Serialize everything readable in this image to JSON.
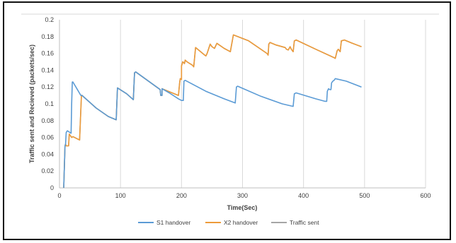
{
  "chart_data": {
    "type": "line",
    "title": "",
    "xlabel": "Time(Sec)",
    "ylabel": "Traffic sent and Recieved (packets/sec)",
    "xlim": [
      0,
      600
    ],
    "ylim": [
      0,
      0.2
    ],
    "x_ticks": [
      "0",
      "100",
      "200",
      "300",
      "400",
      "500",
      "600"
    ],
    "y_ticks": [
      "0",
      "0.02",
      "0.04",
      "0.06",
      "0.08",
      "0.1",
      "0.12",
      "0.14",
      "0.16",
      "0.18",
      "0.2"
    ],
    "grid": "vertical",
    "legend_position": "bottom",
    "colors": {
      "S1 handover": "#5b9bd5",
      "X2 handover": "#ed9b3a",
      "Traffic sent": "#a5a5a5"
    },
    "series": [
      {
        "name": "Traffic sent",
        "points": [
          [
            7,
            0
          ],
          [
            9,
            0.05
          ],
          [
            10,
            0.052
          ],
          [
            11,
            0.05
          ],
          [
            13,
            0.05
          ],
          [
            15,
            0.05
          ],
          [
            16,
            0.064
          ],
          [
            18,
            0.062
          ],
          [
            20,
            0.06
          ],
          [
            22,
            0.061
          ],
          [
            33,
            0.057
          ],
          [
            36,
            0.11
          ],
          [
            37,
            0.11
          ],
          [
            60,
            0.095
          ],
          [
            80,
            0.085
          ],
          [
            93,
            0.081
          ],
          [
            95,
            0.119
          ],
          [
            110,
            0.112
          ],
          [
            121,
            0.105
          ],
          [
            123,
            0.137
          ],
          [
            125,
            0.138
          ],
          [
            165,
            0.117
          ],
          [
            166,
            0.11
          ],
          [
            168,
            0.11
          ],
          [
            168,
            0.118
          ],
          [
            195,
            0.11
          ],
          [
            197,
            0.125
          ],
          [
            198,
            0.13
          ],
          [
            200,
            0.129
          ],
          [
            200,
            0.145
          ],
          [
            202,
            0.15
          ],
          [
            205,
            0.148
          ],
          [
            206,
            0.152
          ],
          [
            209,
            0.15
          ],
          [
            218,
            0.146
          ],
          [
            220,
            0.144
          ],
          [
            223,
            0.167
          ],
          [
            238,
            0.158
          ],
          [
            240,
            0.157
          ],
          [
            242,
            0.16
          ],
          [
            247,
            0.171
          ],
          [
            250,
            0.168
          ],
          [
            254,
            0.166
          ],
          [
            258,
            0.172
          ],
          [
            270,
            0.166
          ],
          [
            280,
            0.162
          ],
          [
            285,
            0.182
          ],
          [
            310,
            0.175
          ],
          [
            340,
            0.16
          ],
          [
            342,
            0.158
          ],
          [
            343,
            0.171
          ],
          [
            345,
            0.173
          ],
          [
            355,
            0.17
          ],
          [
            370,
            0.167
          ],
          [
            372,
            0.165
          ],
          [
            375,
            0.164
          ],
          [
            378,
            0.168
          ],
          [
            380,
            0.165
          ],
          [
            383,
            0.162
          ],
          [
            385,
            0.175
          ],
          [
            388,
            0.176
          ],
          [
            420,
            0.165
          ],
          [
            450,
            0.155
          ],
          [
            452,
            0.154
          ],
          [
            455,
            0.163
          ],
          [
            457,
            0.165
          ],
          [
            460,
            0.162
          ],
          [
            462,
            0.175
          ],
          [
            467,
            0.176
          ],
          [
            480,
            0.172
          ],
          [
            495,
            0.168
          ]
        ]
      },
      {
        "name": "X2 handover",
        "points": [
          [
            7,
            0
          ],
          [
            9,
            0.05
          ],
          [
            10,
            0.052
          ],
          [
            11,
            0.05
          ],
          [
            13,
            0.05
          ],
          [
            15,
            0.05
          ],
          [
            16,
            0.064
          ],
          [
            18,
            0.062
          ],
          [
            20,
            0.06
          ],
          [
            22,
            0.061
          ],
          [
            33,
            0.057
          ],
          [
            36,
            0.11
          ],
          [
            37,
            0.11
          ],
          [
            60,
            0.095
          ],
          [
            80,
            0.085
          ],
          [
            93,
            0.081
          ],
          [
            95,
            0.119
          ],
          [
            110,
            0.112
          ],
          [
            121,
            0.105
          ],
          [
            123,
            0.137
          ],
          [
            125,
            0.138
          ],
          [
            165,
            0.117
          ],
          [
            166,
            0.11
          ],
          [
            168,
            0.11
          ],
          [
            168,
            0.118
          ],
          [
            195,
            0.11
          ],
          [
            197,
            0.125
          ],
          [
            198,
            0.13
          ],
          [
            200,
            0.129
          ],
          [
            200,
            0.145
          ],
          [
            202,
            0.15
          ],
          [
            205,
            0.148
          ],
          [
            206,
            0.152
          ],
          [
            209,
            0.15
          ],
          [
            218,
            0.146
          ],
          [
            220,
            0.144
          ],
          [
            223,
            0.167
          ],
          [
            238,
            0.158
          ],
          [
            240,
            0.157
          ],
          [
            242,
            0.16
          ],
          [
            247,
            0.171
          ],
          [
            250,
            0.168
          ],
          [
            254,
            0.166
          ],
          [
            258,
            0.172
          ],
          [
            270,
            0.166
          ],
          [
            280,
            0.162
          ],
          [
            285,
            0.182
          ],
          [
            310,
            0.175
          ],
          [
            340,
            0.16
          ],
          [
            342,
            0.158
          ],
          [
            343,
            0.171
          ],
          [
            345,
            0.173
          ],
          [
            355,
            0.17
          ],
          [
            370,
            0.167
          ],
          [
            372,
            0.165
          ],
          [
            375,
            0.164
          ],
          [
            378,
            0.168
          ],
          [
            380,
            0.165
          ],
          [
            383,
            0.162
          ],
          [
            385,
            0.175
          ],
          [
            388,
            0.176
          ],
          [
            420,
            0.165
          ],
          [
            450,
            0.155
          ],
          [
            452,
            0.154
          ],
          [
            455,
            0.163
          ],
          [
            457,
            0.165
          ],
          [
            460,
            0.162
          ],
          [
            462,
            0.175
          ],
          [
            467,
            0.176
          ],
          [
            480,
            0.172
          ],
          [
            495,
            0.168
          ]
        ]
      },
      {
        "name": "S1 handover",
        "points": [
          [
            7,
            0
          ],
          [
            9,
            0.05
          ],
          [
            10,
            0.052
          ],
          [
            11,
            0.066
          ],
          [
            13,
            0.068
          ],
          [
            15,
            0.067
          ],
          [
            17,
            0.066
          ],
          [
            19,
            0.065
          ],
          [
            20,
            0.1
          ],
          [
            21,
            0.126
          ],
          [
            22,
            0.126
          ],
          [
            35,
            0.11
          ],
          [
            37,
            0.11
          ],
          [
            60,
            0.095
          ],
          [
            80,
            0.085
          ],
          [
            93,
            0.081
          ],
          [
            95,
            0.119
          ],
          [
            110,
            0.112
          ],
          [
            121,
            0.105
          ],
          [
            123,
            0.137
          ],
          [
            125,
            0.138
          ],
          [
            165,
            0.117
          ],
          [
            166,
            0.11
          ],
          [
            168,
            0.11
          ],
          [
            168,
            0.118
          ],
          [
            180,
            0.113
          ],
          [
            195,
            0.106
          ],
          [
            200,
            0.104
          ],
          [
            203,
            0.104
          ],
          [
            204,
            0.127
          ],
          [
            206,
            0.128
          ],
          [
            240,
            0.115
          ],
          [
            270,
            0.106
          ],
          [
            288,
            0.101
          ],
          [
            290,
            0.12
          ],
          [
            292,
            0.121
          ],
          [
            330,
            0.109
          ],
          [
            365,
            0.1
          ],
          [
            383,
            0.097
          ],
          [
            385,
            0.112
          ],
          [
            388,
            0.113
          ],
          [
            420,
            0.106
          ],
          [
            435,
            0.103
          ],
          [
            438,
            0.103
          ],
          [
            439,
            0.115
          ],
          [
            441,
            0.118
          ],
          [
            443,
            0.117
          ],
          [
            445,
            0.117
          ],
          [
            446,
            0.125
          ],
          [
            448,
            0.127
          ],
          [
            450,
            0.128
          ],
          [
            452,
            0.13
          ],
          [
            470,
            0.127
          ],
          [
            495,
            0.12
          ]
        ]
      }
    ]
  }
}
